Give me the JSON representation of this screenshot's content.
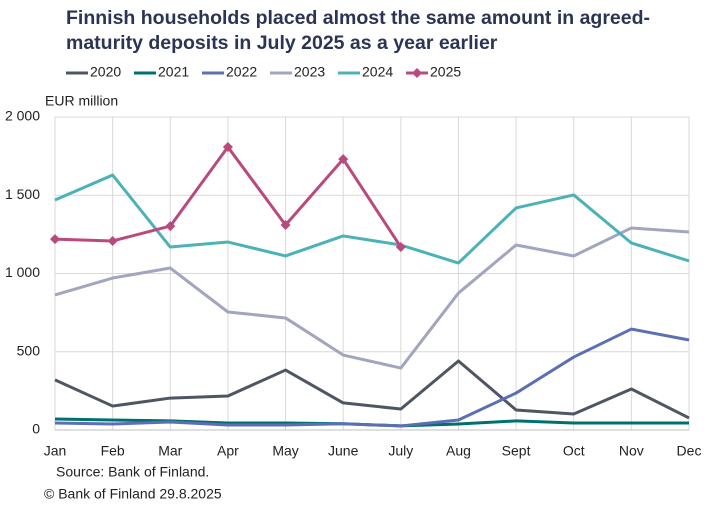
{
  "chart_data": {
    "type": "line",
    "title": "Finnish households placed almost the same amount in agreed-maturity deposits in July 2025 as a year earlier",
    "y_label": "EUR million",
    "source": "Source: Bank of Finland.",
    "copyright": "© Bank of Finland 29.8.2025",
    "categories": [
      "Jan",
      "Feb",
      "Mar",
      "Apr",
      "May",
      "June",
      "July",
      "Aug",
      "Sept",
      "Oct",
      "Nov",
      "Dec"
    ],
    "ylim": [
      0,
      2000
    ],
    "yticks": [
      0,
      500,
      {
        "value": 1000,
        "label": "1 000"
      },
      {
        "value": 1500,
        "label": "1 500"
      },
      {
        "value": 2000,
        "label": "2 000"
      }
    ],
    "grid": true,
    "legend": "top",
    "series": [
      {
        "name": "2020",
        "color": "#4e5663",
        "values": [
          320,
          153,
          204,
          217,
          383,
          173,
          134,
          441,
          128,
          102,
          262,
          77
        ]
      },
      {
        "name": "2021",
        "color": "#00706f",
        "values": [
          70,
          64,
          58,
          45,
          45,
          40,
          26,
          38,
          58,
          45,
          45,
          45
        ]
      },
      {
        "name": "2022",
        "color": "#5c6fb5",
        "values": [
          45,
          38,
          51,
          32,
          32,
          40,
          26,
          64,
          236,
          466,
          645,
          575
        ]
      },
      {
        "name": "2023",
        "color": "#a2a5bf",
        "values": [
          863,
          971,
          1035,
          754,
          716,
          479,
          396,
          875,
          1182,
          1112,
          1291,
          1265
        ]
      },
      {
        "name": "2024",
        "color": "#4cb2b8",
        "values": [
          1470,
          1629,
          1169,
          1201,
          1112,
          1240,
          1182,
          1067,
          1419,
          1502,
          1195,
          1080
        ]
      },
      {
        "name": "2025",
        "color": "#b94a7e",
        "marker": "diamond",
        "values": [
          1220,
          1208,
          1303,
          1808,
          1310,
          1731,
          1169,
          null,
          null,
          null,
          null,
          null
        ]
      }
    ]
  }
}
